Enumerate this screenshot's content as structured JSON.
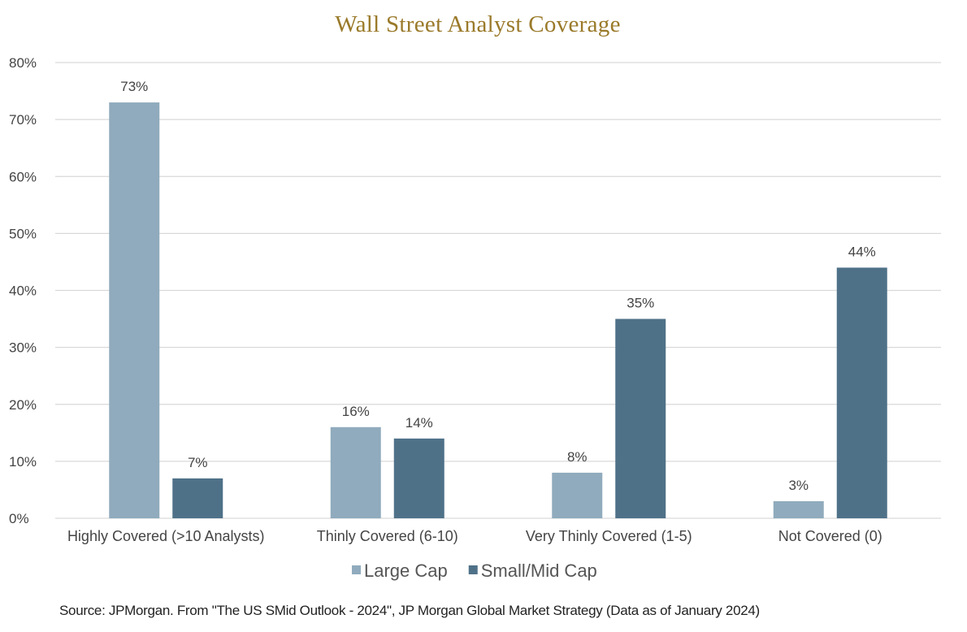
{
  "chart_data": {
    "type": "bar",
    "title": "Wall Street Analyst Coverage",
    "categories": [
      "Highly Covered (>10 Analysts)",
      "Thinly Covered (6-10)",
      "Very Thinly Covered (1-5)",
      "Not Covered (0)"
    ],
    "series": [
      {
        "name": "Large Cap",
        "values": [
          73,
          16,
          8,
          3
        ],
        "labels": [
          "73%",
          "16%",
          "8%",
          "3%"
        ],
        "color": "#90abbd"
      },
      {
        "name": "Small/Mid Cap",
        "values": [
          7,
          14,
          35,
          44
        ],
        "labels": [
          "7%",
          "14%",
          "35%",
          "44%"
        ],
        "color": "#4f7188"
      }
    ],
    "y_ticks": [
      0,
      10,
      20,
      30,
      40,
      50,
      60,
      70,
      80
    ],
    "y_tick_labels": [
      "0%",
      "10%",
      "20%",
      "30%",
      "40%",
      "50%",
      "60%",
      "70%",
      "80%"
    ],
    "ylim": [
      0,
      80
    ],
    "xlabel": "",
    "ylabel": "",
    "grid": true,
    "legend_position": "bottom-center",
    "colors": {
      "grid": "#d9d9d9",
      "title": "#9a7a2a"
    }
  },
  "source_note": "Source: JPMorgan. From \"The US SMid Outlook - 2024\", JP Morgan Global Market Strategy (Data as of January 2024)"
}
